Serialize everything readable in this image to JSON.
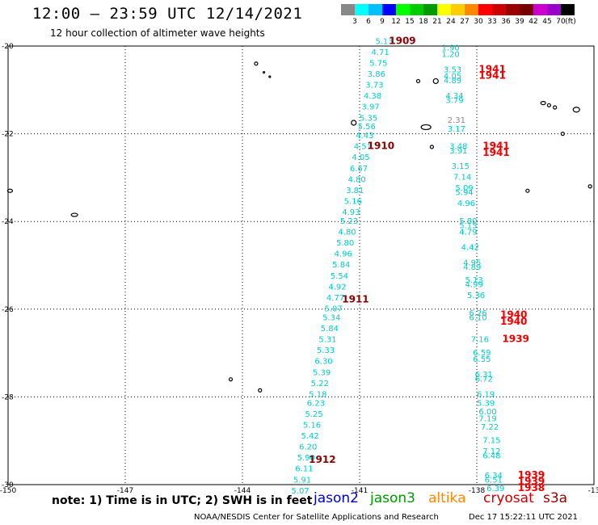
{
  "title": "12:00 – 23:59 UTC 12/14/2021",
  "subtitle": "12 hour collection of altimeter wave heights",
  "note": "note: 1) Time is in UTC; 2) SWH is in feet",
  "credit": "NOAA/NESDIS Center for Satellite Applications and Research",
  "timestamp": "Dec 17 15:22:11 UTC 2021",
  "colorbar": {
    "colors": [
      "#888888",
      "#00ffff",
      "#00bfff",
      "#0000ff",
      "#00ff00",
      "#00cc00",
      "#009900",
      "#ffff00",
      "#ffcc00",
      "#ff8800",
      "#ff0000",
      "#cc0000",
      "#990000",
      "#770000",
      "#cc00cc",
      "#9900cc",
      "#000000"
    ],
    "labels": [
      "3",
      "6",
      "9",
      "12",
      "15",
      "18",
      "21",
      "24",
      "27",
      "30",
      "33",
      "36",
      "39",
      "42",
      "45",
      "70",
      "(ft)"
    ]
  },
  "satellites": [
    {
      "name": "jason2",
      "color": "#0000cc"
    },
    {
      "name": "jason3",
      "color": "#009900"
    },
    {
      "name": "altika",
      "color": "#ff8800"
    },
    {
      "name": "cryosat",
      "color": "#cc0000"
    },
    {
      "name": "s3a",
      "color": "#990000"
    }
  ],
  "axes": {
    "lon_ticks": [
      "-150",
      "-147",
      "-144",
      "-141",
      "-138",
      "-13"
    ],
    "lat_ticks": [
      "-20",
      "-22",
      "-24",
      "-26",
      "-28",
      "-30"
    ]
  },
  "colors": {
    "swh": "#00cccc",
    "swh_other": "#888888",
    "time_dark": "#880000",
    "time_red": "#ee0000"
  },
  "track_west": {
    "times": [
      {
        "text": "1909",
        "lon": -140.25,
        "lat": -19.95,
        "style": "dark"
      },
      {
        "text": "1910",
        "lon": -140.8,
        "lat": -22.35,
        "style": "dark"
      },
      {
        "text": "1911",
        "lon": -141.45,
        "lat": -25.85,
        "style": "dark"
      },
      {
        "text": "1912",
        "lon": -142.3,
        "lat": -29.5,
        "style": "dark"
      }
    ],
    "swh": [
      {
        "text": "5.13",
        "lon": -140.6,
        "lat": -19.95
      },
      {
        "text": "4.71",
        "lon": -140.7,
        "lat": -20.2
      },
      {
        "text": "5.75",
        "lon": -140.75,
        "lat": -20.45
      },
      {
        "text": "3.86",
        "lon": -140.8,
        "lat": -20.7
      },
      {
        "text": "3.73",
        "lon": -140.85,
        "lat": -20.95
      },
      {
        "text": "4.38",
        "lon": -140.9,
        "lat": -21.2
      },
      {
        "text": "3.97",
        "lon": -140.95,
        "lat": -21.45
      },
      {
        "text": "5.35",
        "lon": -141.0,
        "lat": -21.7
      },
      {
        "text": "5.56",
        "lon": -141.05,
        "lat": -21.9
      },
      {
        "text": "4.43",
        "lon": -141.1,
        "lat": -22.1
      },
      {
        "text": "4.51",
        "lon": -141.15,
        "lat": -22.35
      },
      {
        "text": "4.05",
        "lon": -141.2,
        "lat": -22.6
      },
      {
        "text": "6.67",
        "lon": -141.25,
        "lat": -22.85
      },
      {
        "text": "4.80",
        "lon": -141.3,
        "lat": -23.1
      },
      {
        "text": "3.81",
        "lon": -141.35,
        "lat": -23.35
      },
      {
        "text": "5.16",
        "lon": -141.4,
        "lat": -23.6
      },
      {
        "text": "4.93",
        "lon": -141.45,
        "lat": -23.85
      },
      {
        "text": "5.23",
        "lon": -141.5,
        "lat": -24.05
      },
      {
        "text": "4.80",
        "lon": -141.55,
        "lat": -24.3
      },
      {
        "text": "5.80",
        "lon": -141.6,
        "lat": -24.55
      },
      {
        "text": "4.96",
        "lon": -141.65,
        "lat": -24.8
      },
      {
        "text": "5.84",
        "lon": -141.7,
        "lat": -25.05
      },
      {
        "text": "5.54",
        "lon": -141.75,
        "lat": -25.3
      },
      {
        "text": "4.92",
        "lon": -141.8,
        "lat": -25.55
      },
      {
        "text": "4.77",
        "lon": -141.85,
        "lat": -25.8
      },
      {
        "text": "5.07",
        "lon": -141.9,
        "lat": -26.05
      },
      {
        "text": "5.34",
        "lon": -141.95,
        "lat": -26.25
      },
      {
        "text": "5.84",
        "lon": -142.0,
        "lat": -26.5
      },
      {
        "text": "5.31",
        "lon": -142.05,
        "lat": -26.75
      },
      {
        "text": "5.33",
        "lon": -142.1,
        "lat": -27.0
      },
      {
        "text": "6.30",
        "lon": -142.15,
        "lat": -27.25
      },
      {
        "text": "5.39",
        "lon": -142.2,
        "lat": -27.5
      },
      {
        "text": "5.22",
        "lon": -142.25,
        "lat": -27.75
      },
      {
        "text": "5.18",
        "lon": -142.3,
        "lat": -28.0
      },
      {
        "text": "6.23",
        "lon": -142.35,
        "lat": -28.2
      },
      {
        "text": "5.25",
        "lon": -142.4,
        "lat": -28.45
      },
      {
        "text": "5.16",
        "lon": -142.45,
        "lat": -28.7
      },
      {
        "text": "5.42",
        "lon": -142.5,
        "lat": -28.95
      },
      {
        "text": "6.20",
        "lon": -142.55,
        "lat": -29.2
      },
      {
        "text": "5.90",
        "lon": -142.6,
        "lat": -29.45
      },
      {
        "text": "6.11",
        "lon": -142.65,
        "lat": -29.7
      },
      {
        "text": "5.91",
        "lon": -142.7,
        "lat": -29.95
      },
      {
        "text": "5.07",
        "lon": -142.75,
        "lat": -30.2
      }
    ]
  },
  "track_east": {
    "times": [
      {
        "text": "1941",
        "lon": -137.95,
        "lat": -20.6,
        "style": "red"
      },
      {
        "text": "1941",
        "lon": -137.95,
        "lat": -20.75,
        "style": "red"
      },
      {
        "text": "1941",
        "lon": -137.85,
        "lat": -22.35,
        "style": "red"
      },
      {
        "text": "1941",
        "lon": -137.85,
        "lat": -22.5,
        "style": "red"
      },
      {
        "text": "1940",
        "lon": -137.4,
        "lat": -26.2,
        "style": "red"
      },
      {
        "text": "1940",
        "lon": -137.4,
        "lat": -26.35,
        "style": "red"
      },
      {
        "text": "1939",
        "lon": -137.35,
        "lat": -26.75,
        "style": "red"
      },
      {
        "text": "1939",
        "lon": -136.95,
        "lat": -29.85,
        "style": "red"
      },
      {
        "text": "1939",
        "lon": -136.95,
        "lat": -30.0,
        "style": "red"
      },
      {
        "text": "1938",
        "lon": -136.95,
        "lat": -30.15,
        "style": "red"
      }
    ],
    "swh": [
      {
        "text": "1.90",
        "lon": -138.9,
        "lat": -20.1
      },
      {
        "text": "1.20",
        "lon": -138.9,
        "lat": -20.25
      },
      {
        "text": "3.53",
        "lon": -138.85,
        "lat": -20.6
      },
      {
        "text": "4.05",
        "lon": -138.85,
        "lat": -20.75
      },
      {
        "text": "4.89",
        "lon": -138.85,
        "lat": -20.85
      },
      {
        "text": "4.34",
        "lon": -138.8,
        "lat": -21.2
      },
      {
        "text": "3.79",
        "lon": -138.8,
        "lat": -21.3
      },
      {
        "text": "2.31",
        "lon": -138.75,
        "lat": -21.75,
        "style": "other"
      },
      {
        "text": "3.17",
        "lon": -138.75,
        "lat": -21.95
      },
      {
        "text": "3.48",
        "lon": -138.7,
        "lat": -22.35
      },
      {
        "text": "3.91",
        "lon": -138.7,
        "lat": -22.45
      },
      {
        "text": "3.15",
        "lon": -138.65,
        "lat": -22.8
      },
      {
        "text": "7.14",
        "lon": -138.6,
        "lat": -23.05
      },
      {
        "text": "5.09",
        "lon": -138.55,
        "lat": -23.3
      },
      {
        "text": "5.94",
        "lon": -138.55,
        "lat": -23.4
      },
      {
        "text": "4.96",
        "lon": -138.5,
        "lat": -23.65
      },
      {
        "text": "5.80",
        "lon": -138.45,
        "lat": -24.05
      },
      {
        "text": "5.15",
        "lon": -138.45,
        "lat": -24.15
      },
      {
        "text": "4.79",
        "lon": -138.45,
        "lat": -24.3
      },
      {
        "text": "4.42",
        "lon": -138.4,
        "lat": -24.65
      },
      {
        "text": "4.95",
        "lon": -138.35,
        "lat": -25.0
      },
      {
        "text": "4.89",
        "lon": -138.35,
        "lat": -25.1
      },
      {
        "text": "5.13",
        "lon": -138.3,
        "lat": -25.4
      },
      {
        "text": "4.99",
        "lon": -138.3,
        "lat": -25.5
      },
      {
        "text": "5.36",
        "lon": -138.25,
        "lat": -25.75
      },
      {
        "text": "6.26",
        "lon": -138.2,
        "lat": -26.15
      },
      {
        "text": "6.10",
        "lon": -138.2,
        "lat": -26.25
      },
      {
        "text": "7.16",
        "lon": -138.15,
        "lat": -26.75
      },
      {
        "text": "6.59",
        "lon": -138.1,
        "lat": -27.05
      },
      {
        "text": "6.55",
        "lon": -138.1,
        "lat": -27.2
      },
      {
        "text": "6.31",
        "lon": -138.05,
        "lat": -27.55
      },
      {
        "text": "6.72",
        "lon": -138.05,
        "lat": -27.65
      },
      {
        "text": "6.19",
        "lon": -138.0,
        "lat": -28.0
      },
      {
        "text": "5.39",
        "lon": -138.0,
        "lat": -28.2
      },
      {
        "text": "6.00",
        "lon": -137.95,
        "lat": -28.4
      },
      {
        "text": "7.19",
        "lon": -137.95,
        "lat": -28.55
      },
      {
        "text": "7.22",
        "lon": -137.9,
        "lat": -28.75
      },
      {
        "text": "7.15",
        "lon": -137.85,
        "lat": -29.05
      },
      {
        "text": "7.12",
        "lon": -137.85,
        "lat": -29.3
      },
      {
        "text": "6.48",
        "lon": -137.85,
        "lat": -29.4
      },
      {
        "text": "6.34",
        "lon": -137.8,
        "lat": -29.85
      },
      {
        "text": "6.51",
        "lon": -137.8,
        "lat": -29.95
      },
      {
        "text": "6.39",
        "lon": -137.75,
        "lat": -30.15
      }
    ]
  }
}
